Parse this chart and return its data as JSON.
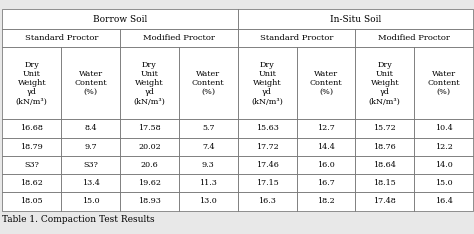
{
  "title": "Table 1. Compaction Test Results",
  "group_labels": [
    "Borrow Soil",
    "In-Situ Soil"
  ],
  "sub_labels": [
    "Standard Proctor",
    "Modified Proctor",
    "Standard Proctor",
    "Modified Proctor"
  ],
  "col_headers": [
    "Dry\nUnit\nWeight\nγd\n(kN/m³)",
    "Water\nContent\n(%)",
    "Dry\nUnit\nWeight\nγd\n(kN/m³)",
    "Water\nContent\n(%)",
    "Dry\nUnit\nWeight\nγd\n(kN/m³)",
    "Water\nContent\n(%)",
    "Dry\nUnit\nWeight\nγd\n(kN/m³)",
    "Water\nContent\n(%)"
  ],
  "rows": [
    [
      "16.68",
      "8.4",
      "17.58",
      "5.7",
      "15.63",
      "12.7",
      "15.72",
      "10.4"
    ],
    [
      "18.79",
      "9.7",
      "20.02",
      "7.4",
      "17.72",
      "14.4",
      "18.76",
      "12.2"
    ],
    [
      "S3?",
      "S3?",
      "20.6",
      "9.3",
      "17.46",
      "16.0",
      "18.64",
      "14.0"
    ],
    [
      "18.62",
      "13.4",
      "19.62",
      "11.3",
      "17.15",
      "16.7",
      "18.15",
      "15.0"
    ],
    [
      "18.05",
      "15.0",
      "18.93",
      "13.0",
      "16.3",
      "18.2",
      "17.48",
      "16.4"
    ]
  ],
  "bg_color": "#e8e8e8",
  "cell_color": "#ffffff",
  "border_color": "#666666",
  "text_color": "#000000",
  "font_size_data": 5.8,
  "font_size_header": 5.8,
  "font_size_subgroup": 6.0,
  "font_size_group": 6.5,
  "font_size_caption": 6.5,
  "lw": 0.5
}
